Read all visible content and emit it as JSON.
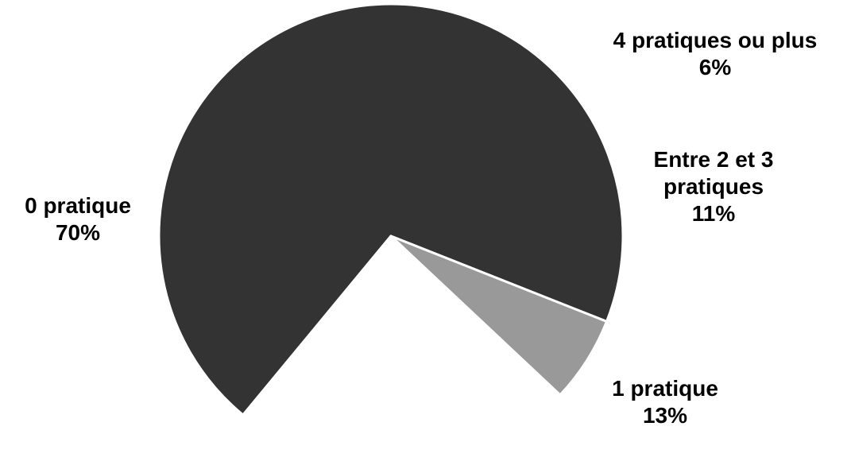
{
  "chart_data": {
    "type": "pie",
    "title": "",
    "slices": [
      {
        "label_lines": [
          "0 pratique"
        ],
        "value": 70,
        "value_label": "70%",
        "color": "#333333",
        "exploded": false
      },
      {
        "label_lines": [
          "4 pratiques ou plus"
        ],
        "value": 6,
        "value_label": "6%",
        "color": "#999999",
        "exploded": false
      },
      {
        "label_lines": [
          "Entre 2 et 3",
          "pratiques"
        ],
        "value": 11,
        "value_label": "11%",
        "color": "#ffffff",
        "exploded": false
      },
      {
        "label_lines": [
          "1 pratique"
        ],
        "value": 13,
        "value_label": "13%",
        "color": "#ffffff",
        "exploded": false
      }
    ],
    "legend": "none",
    "slice_border_color": "#ffffff"
  }
}
